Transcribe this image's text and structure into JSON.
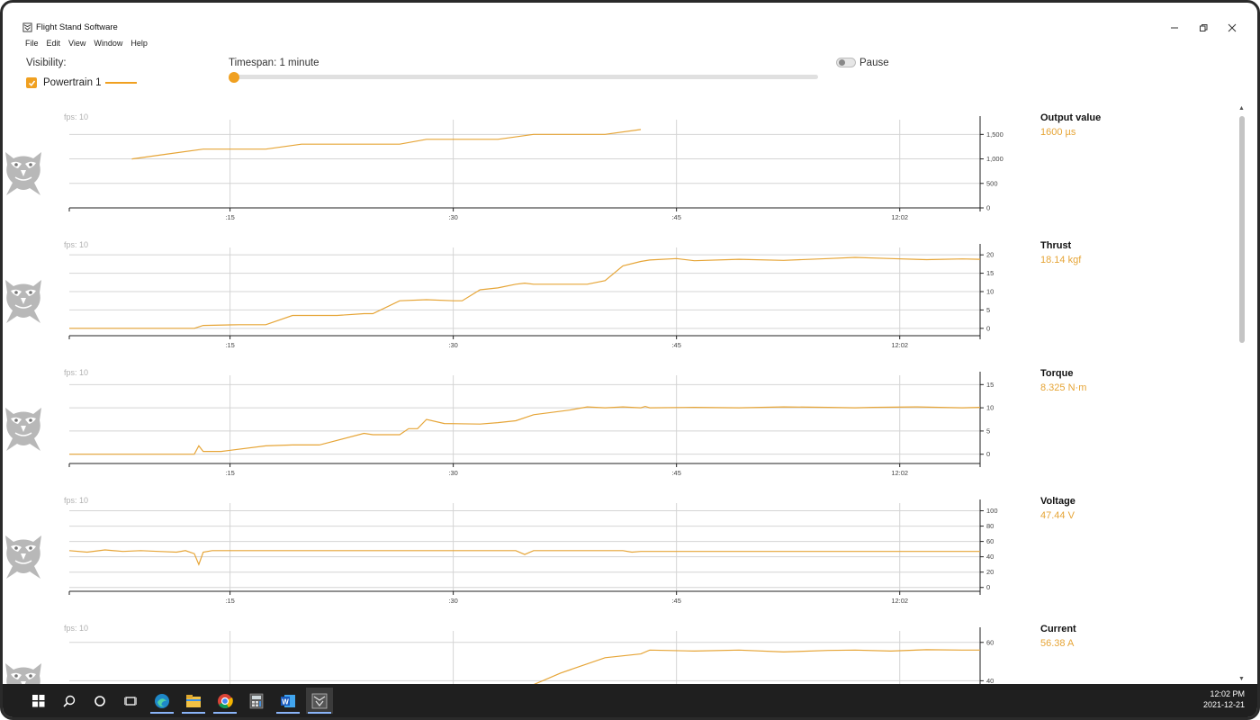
{
  "window": {
    "title": "Flight Stand Software",
    "menu": [
      "File",
      "Edit",
      "View",
      "Window",
      "Help"
    ]
  },
  "controls": {
    "visibility_label": "Visibility:",
    "powertrain_label": "Powertrain 1",
    "powertrain_checked": true,
    "timespan_label": "Timespan: 1 minute",
    "timespan_slider_fraction": 0.0,
    "pause_label": "Pause",
    "pause_on": false
  },
  "colors": {
    "accent": "#f0a020",
    "series": "#e6a537",
    "taskbar": "#1f1f1f"
  },
  "x_axis_ticks": [
    ":15",
    ":30",
    ":45",
    "12:02"
  ],
  "charts": [
    {
      "fps": "fps: 10",
      "name": "Output value",
      "value": "1600 µs",
      "chart_data": {
        "type": "line",
        "ylim": [
          0,
          1800
        ],
        "yticks": [
          0,
          500,
          1000,
          1500
        ],
        "ytick_labels": [
          "0",
          "500",
          "1,000",
          "1,500"
        ],
        "x": [
          7,
          11,
          15,
          19,
          22,
          26,
          30,
          33,
          37,
          40,
          44,
          48,
          52,
          56,
          60,
          64
        ],
        "y": [
          1000,
          1100,
          1200,
          1200,
          1200,
          1300,
          1300,
          1300,
          1300,
          1400,
          1400,
          1400,
          1500,
          1500,
          1500,
          1600
        ]
      }
    },
    {
      "fps": "fps: 10",
      "name": "Thrust",
      "value": "18.14 kgf",
      "chart_data": {
        "type": "line",
        "ylim": [
          -2,
          22
        ],
        "yticks": [
          0,
          5,
          10,
          15,
          20
        ],
        "ytick_labels": [
          "0",
          "5",
          "10",
          "15",
          "20"
        ],
        "x": [
          0,
          10,
          14,
          15,
          19,
          22,
          25,
          30,
          33,
          34,
          37,
          40,
          43,
          44,
          46,
          48,
          50,
          51,
          52,
          56,
          58,
          60,
          62,
          64,
          65,
          68,
          70,
          75,
          80,
          85,
          88,
          92,
          96,
          100,
          102
        ],
        "y": [
          0,
          0,
          0,
          0.8,
          1,
          1,
          3.5,
          3.5,
          4,
          4,
          7.5,
          7.8,
          7.5,
          7.5,
          10.5,
          11,
          12,
          12.3,
          12,
          12,
          12,
          13,
          17,
          18.2,
          18.6,
          19,
          18.4,
          18.8,
          18.5,
          19,
          19.3,
          19,
          18.7,
          18.9,
          18.8
        ]
      }
    },
    {
      "fps": "fps: 10",
      "name": "Torque",
      "value": "8.325 N·m",
      "chart_data": {
        "type": "line",
        "ylim": [
          -2,
          17
        ],
        "yticks": [
          0,
          5,
          10,
          15
        ],
        "ytick_labels": [
          "0",
          "5",
          "10",
          "15"
        ],
        "x": [
          0,
          10,
          14,
          14.5,
          15,
          15.5,
          17,
          22,
          25,
          28,
          33,
          34,
          36,
          37,
          38,
          39,
          40,
          42,
          46,
          48,
          50,
          52,
          56,
          58,
          60,
          62,
          64,
          64.5,
          65,
          70,
          75,
          80,
          85,
          88,
          90,
          95,
          100,
          102
        ],
        "y": [
          0,
          0,
          0,
          1.8,
          0.6,
          0.6,
          0.6,
          1.8,
          2,
          2,
          4.5,
          4.2,
          4.2,
          4.2,
          5.5,
          5.5,
          7.5,
          6.6,
          6.5,
          6.8,
          7.2,
          8.5,
          9.5,
          10.2,
          10,
          10.2,
          10,
          10.3,
          10,
          10.1,
          10,
          10.2,
          10.1,
          10,
          10.1,
          10.2,
          10,
          10.1
        ]
      }
    },
    {
      "fps": "fps: 10",
      "name": "Voltage",
      "value": "47.44 V",
      "chart_data": {
        "type": "line",
        "ylim": [
          -5,
          110
        ],
        "yticks": [
          0,
          20,
          40,
          60,
          80,
          100
        ],
        "ytick_labels": [
          "0",
          "20",
          "40",
          "60",
          "80",
          "100"
        ],
        "x": [
          0,
          2,
          4,
          6,
          8,
          10,
          12,
          13,
          14,
          14.5,
          15,
          16,
          20,
          30,
          40,
          50,
          51,
          52,
          60,
          62,
          63,
          64,
          70,
          80,
          90,
          100,
          102
        ],
        "y": [
          48,
          46,
          49,
          47,
          48,
          47,
          46,
          48,
          44,
          30,
          46,
          48,
          48,
          48,
          48,
          48,
          43,
          48,
          48,
          48,
          46,
          47,
          47,
          47,
          47,
          47,
          47
        ]
      }
    },
    {
      "fps": "fps: 10",
      "name": "Current",
      "value": "56.38 A",
      "chart_data": {
        "type": "line",
        "ylim": [
          20,
          66
        ],
        "yticks": [
          40,
          60
        ],
        "ytick_labels": [
          "40",
          "60"
        ],
        "x": [
          32,
          32.5,
          34,
          38,
          40,
          42,
          44,
          46,
          50,
          55,
          60,
          64,
          65,
          70,
          75,
          80,
          85,
          88,
          92,
          96,
          100,
          102
        ],
        "y": [
          24,
          28,
          27,
          26,
          26.5,
          26,
          26,
          29,
          34,
          44,
          52,
          54,
          56,
          55.5,
          56,
          55,
          55.8,
          56,
          55.5,
          56.2,
          56,
          56
        ]
      }
    }
  ],
  "taskbar": {
    "time": "12:02 PM",
    "date": "2021-12-21",
    "apps": [
      "start",
      "search",
      "cortana",
      "task-view",
      "edge",
      "file-explorer",
      "chrome",
      "calculator",
      "word",
      "flight-stand"
    ]
  }
}
